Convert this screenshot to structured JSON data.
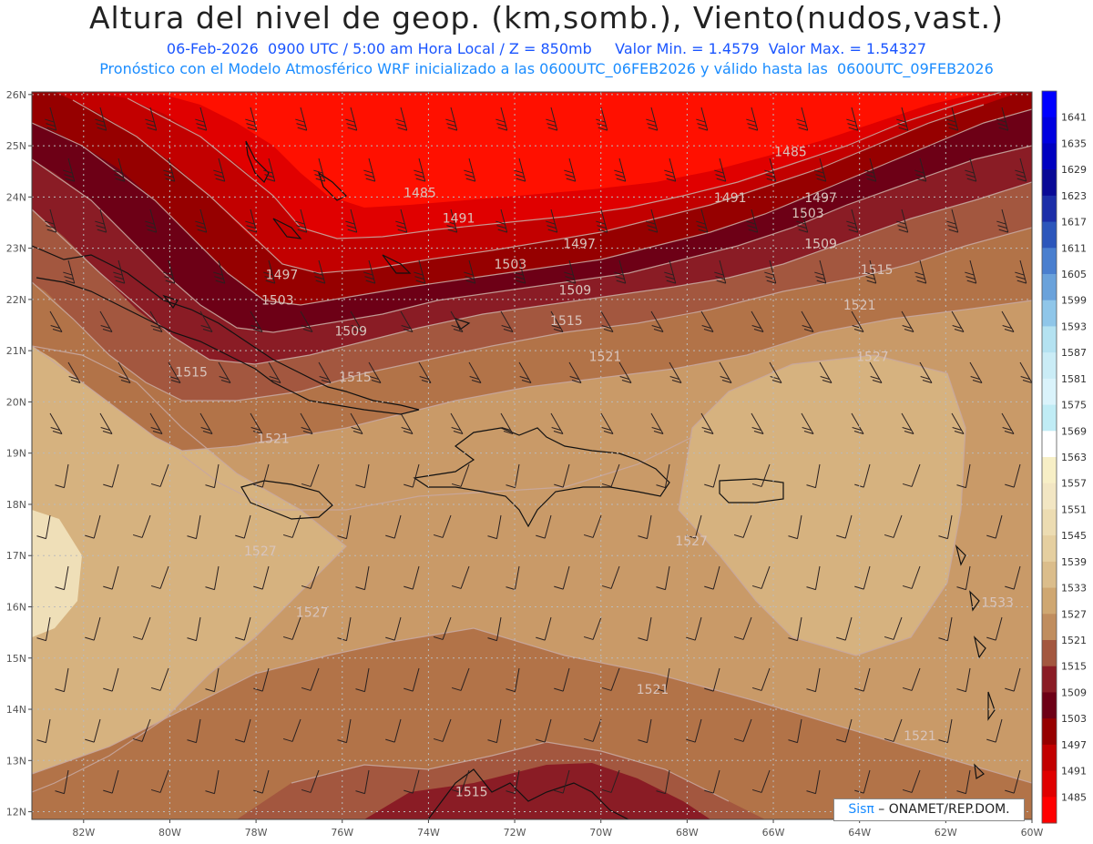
{
  "title": "Altura del nivel de geop. (km,somb.), Viento(nudos,vast.)",
  "subtitle_line1": "06-Feb-2026  0900 UTC / 5:00 am Hora Local / Z = 850mb     Valor Min. = 1.4579  Valor Max. = 1.54327",
  "subtitle_line2": "Pronóstico con el Modelo Atmosférico WRF inicializado a las 0600UTC_06FEB2026 y válido hasta las  0600UTC_09FEB2026",
  "credit": {
    "logo": "Sisπ",
    "text": " – ONAMET/REP.DOM."
  },
  "map": {
    "lat_labels": [
      "26N",
      "25N",
      "24N",
      "23N",
      "22N",
      "21N",
      "20N",
      "19N",
      "18N",
      "17N",
      "16N",
      "15N",
      "14N",
      "13N",
      "12N"
    ],
    "lon_labels": [
      "82W",
      "80W",
      "78W",
      "76W",
      "74W",
      "72W",
      "70W",
      "68W",
      "66W",
      "64W",
      "62W",
      "60W"
    ],
    "contour_labels": [
      {
        "text": "1485",
        "lon": -74.2,
        "lat": 24.0
      },
      {
        "text": "1485",
        "lon": -65.6,
        "lat": 24.8
      },
      {
        "text": "1491",
        "lon": -73.3,
        "lat": 23.5
      },
      {
        "text": "1491",
        "lon": -67.0,
        "lat": 23.9
      },
      {
        "text": "1497",
        "lon": -70.5,
        "lat": 23.0
      },
      {
        "text": "1497",
        "lon": -64.9,
        "lat": 23.9
      },
      {
        "text": "1497",
        "lon": -77.4,
        "lat": 22.4
      },
      {
        "text": "1503",
        "lon": -72.1,
        "lat": 22.6
      },
      {
        "text": "1503",
        "lon": -65.2,
        "lat": 23.6
      },
      {
        "text": "1503",
        "lon": -77.5,
        "lat": 21.9
      },
      {
        "text": "1509",
        "lon": -70.6,
        "lat": 22.1
      },
      {
        "text": "1509",
        "lon": -64.9,
        "lat": 23.0
      },
      {
        "text": "1509",
        "lon": -75.8,
        "lat": 21.3
      },
      {
        "text": "1515",
        "lon": -70.8,
        "lat": 21.5
      },
      {
        "text": "1515",
        "lon": -63.6,
        "lat": 22.5
      },
      {
        "text": "1515",
        "lon": -79.5,
        "lat": 20.5
      },
      {
        "text": "1515",
        "lon": -75.7,
        "lat": 20.4
      },
      {
        "text": "1515",
        "lon": -73.0,
        "lat": 12.3
      },
      {
        "text": "1521",
        "lon": -69.9,
        "lat": 20.8
      },
      {
        "text": "1521",
        "lon": -64.0,
        "lat": 21.8
      },
      {
        "text": "1521",
        "lon": -77.6,
        "lat": 19.2
      },
      {
        "text": "1521",
        "lon": -68.8,
        "lat": 14.3
      },
      {
        "text": "1521",
        "lon": -62.6,
        "lat": 13.4
      },
      {
        "text": "1527",
        "lon": -63.7,
        "lat": 20.8
      },
      {
        "text": "1527",
        "lon": -77.9,
        "lat": 17.0
      },
      {
        "text": "1527",
        "lon": -76.7,
        "lat": 15.8
      },
      {
        "text": "1527",
        "lon": -67.9,
        "lat": 17.2
      },
      {
        "text": "1533",
        "lon": -60.8,
        "lat": 16.0
      }
    ],
    "colorbar": [
      {
        "label": "1641",
        "color": "#0000ff"
      },
      {
        "label": "1635",
        "color": "#0000e0"
      },
      {
        "label": "1629",
        "color": "#0000c0"
      },
      {
        "label": "1623",
        "color": "#0a0a96"
      },
      {
        "label": "1617",
        "color": "#1c2ea8"
      },
      {
        "label": "1611",
        "color": "#2c56bb"
      },
      {
        "label": "1605",
        "color": "#4a7fcf"
      },
      {
        "label": "1599",
        "color": "#6aa2db"
      },
      {
        "label": "1593",
        "color": "#8fc6e9"
      },
      {
        "label": "1587",
        "color": "#b4e2f1"
      },
      {
        "label": "1581",
        "color": "#caecf6"
      },
      {
        "label": "1575",
        "color": "#daf3fb"
      },
      {
        "label": "1569",
        "color": "#c0ecf5"
      },
      {
        "label": "1563",
        "color": "#ffffff"
      },
      {
        "label": "1557",
        "color": "#f7efc6"
      },
      {
        "label": "1551",
        "color": "#f2e6c3"
      },
      {
        "label": "1545",
        "color": "#ecdcb2"
      },
      {
        "label": "1539",
        "color": "#e5cfa0"
      },
      {
        "label": "1533",
        "color": "#dbbd8b"
      },
      {
        "label": "1527",
        "color": "#cfa771"
      },
      {
        "label": "1521",
        "color": "#c08d5e"
      },
      {
        "label": "1515",
        "color": "#a3573f"
      },
      {
        "label": "1509",
        "color": "#8a1c25"
      },
      {
        "label": "1503",
        "color": "#6d0016"
      },
      {
        "label": "1497",
        "color": "#960000"
      },
      {
        "label": "1491",
        "color": "#c20000"
      },
      {
        "label": "1485",
        "color": "#e00000"
      },
      {
        "label": "",
        "color": "#ff0000"
      }
    ]
  }
}
